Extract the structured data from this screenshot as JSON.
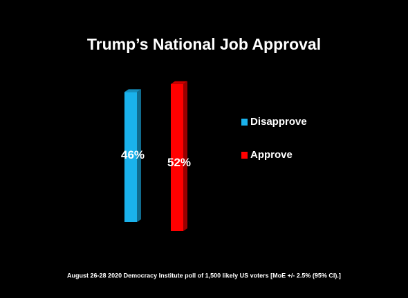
{
  "chart_data": {
    "type": "bar3d",
    "title": "Trump’s National Job Approval",
    "series": [
      {
        "name": "Disapprove",
        "color": "#1ab2ec",
        "values": [
          46
        ],
        "value_labels": [
          "46%"
        ]
      },
      {
        "name": "Approve",
        "color": "#ff0000",
        "values": [
          52
        ],
        "value_labels": [
          "52%"
        ]
      }
    ],
    "footnote": "August 26-28 2020 Democracy Institute poll of 1,500 likely US voters [MoE +/- 2.5% (95% CI).]"
  }
}
